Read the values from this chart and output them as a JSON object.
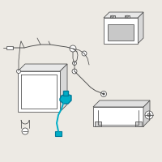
{
  "bg_color": "#edeae4",
  "line_color": "#4a4a4a",
  "highlight_color": "#00aec7",
  "highlight_dark": "#007a99",
  "fig_bg": "#edeae4",
  "lw": 0.55
}
